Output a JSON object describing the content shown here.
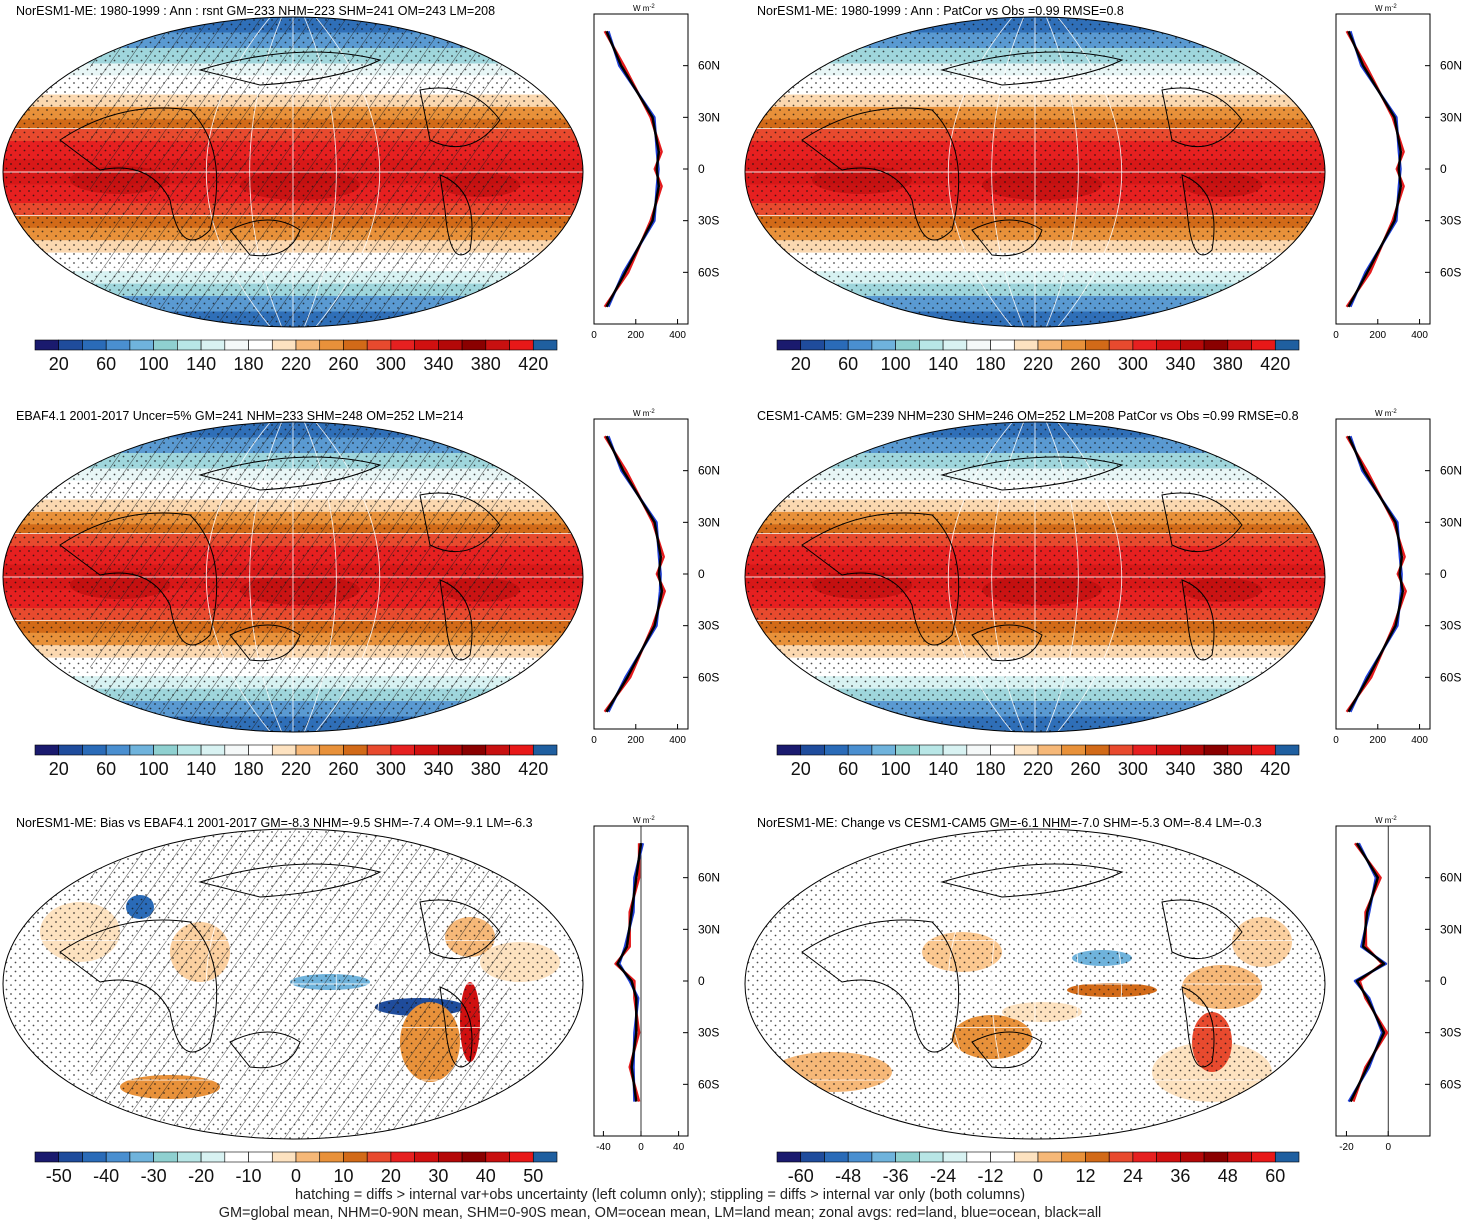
{
  "panels": [
    {
      "id": "p1",
      "title": "NorESM1-ME: 1980-1999 : Ann : rsnt GM=233 NHM=223 SHM=241 OM=243 LM=208",
      "kind": "clim",
      "hatch": true,
      "colorbar": {
        "labels": [
          "20",
          "60",
          "100",
          "140",
          "180",
          "220",
          "260",
          "300",
          "340",
          "380",
          "420"
        ]
      },
      "zonal": {
        "unit": "W m-2",
        "unit_base": "W m",
        "unit_sup": "-2",
        "xticks": [
          "0",
          "200",
          "400"
        ],
        "xlim": [
          0,
          450
        ],
        "lat_labels": [
          "60N",
          "30N",
          "0",
          "30S",
          "60S"
        ]
      }
    },
    {
      "id": "p2",
      "title": "NorESM1-ME: 1980-1999 : Ann : PatCor vs Obs =0.99 RMSE=0.8",
      "kind": "clim",
      "hatch": false,
      "colorbar": {
        "labels": [
          "20",
          "60",
          "100",
          "140",
          "180",
          "220",
          "260",
          "300",
          "340",
          "380",
          "420"
        ]
      },
      "zonal": {
        "unit": "W m-2",
        "unit_base": "W m",
        "unit_sup": "-2",
        "xticks": [
          "0",
          "200",
          "400"
        ],
        "xlim": [
          0,
          450
        ],
        "lat_labels": [
          "60N",
          "30N",
          "0",
          "30S",
          "60S"
        ]
      }
    },
    {
      "id": "p3",
      "title": "EBAF4.1 2001-2017 Uncer=5% GM=241 NHM=233 SHM=248 OM=252 LM=214",
      "kind": "clim",
      "hatch": true,
      "colorbar": {
        "labels": [
          "20",
          "60",
          "100",
          "140",
          "180",
          "220",
          "260",
          "300",
          "340",
          "380",
          "420"
        ]
      },
      "zonal": {
        "unit": "W m-2",
        "unit_base": "W m",
        "unit_sup": "-2",
        "xticks": [
          "0",
          "200",
          "400"
        ],
        "xlim": [
          0,
          450
        ],
        "lat_labels": [
          "60N",
          "30N",
          "0",
          "30S",
          "60S"
        ]
      }
    },
    {
      "id": "p4",
      "title": "CESM1-CAM5: GM=239 NHM=230 SHM=246 OM=252 LM=208 PatCor vs Obs =0.99 RMSE=0.8",
      "kind": "clim",
      "hatch": false,
      "colorbar": {
        "labels": [
          "20",
          "60",
          "100",
          "140",
          "180",
          "220",
          "260",
          "300",
          "340",
          "380",
          "420"
        ]
      },
      "zonal": {
        "unit": "W m-2",
        "unit_base": "W m",
        "unit_sup": "-2",
        "xticks": [
          "0",
          "200",
          "400"
        ],
        "xlim": [
          0,
          450
        ],
        "lat_labels": [
          "60N",
          "30N",
          "0",
          "30S",
          "60S"
        ]
      }
    },
    {
      "id": "p5",
      "title": "NorESM1-ME: Bias vs EBAF4.1 2001-2017 GM=-8.3 NHM=-9.5 SHM=-7.4 OM=-9.1 LM=-6.3",
      "kind": "diff",
      "hatch": true,
      "colorbar": {
        "labels": [
          "-50",
          "-40",
          "-30",
          "-20",
          "-10",
          "0",
          "10",
          "20",
          "30",
          "40",
          "50"
        ]
      },
      "zonal": {
        "unit": "W m-2",
        "unit_base": "W m",
        "unit_sup": "-2",
        "xticks": [
          "-40",
          "0",
          "40"
        ],
        "xlim": [
          -50,
          50
        ],
        "lat_labels": [
          "60N",
          "30N",
          "0",
          "30S",
          "60S"
        ]
      }
    },
    {
      "id": "p6",
      "title": "NorESM1-ME: Change vs CESM1-CAM5 GM=-6.1 NHM=-7.0 SHM=-5.3 OM=-8.4 LM=-0.3",
      "kind": "diff2",
      "hatch": false,
      "colorbar": {
        "labels": [
          "-60",
          "-48",
          "-36",
          "-24",
          "-12",
          "0",
          "12",
          "24",
          "36",
          "48",
          "60"
        ]
      },
      "zonal": {
        "unit": "W m-2",
        "unit_base": "W m",
        "unit_sup": "-2",
        "xticks": [
          "-20",
          "0"
        ],
        "xlim": [
          -25,
          20
        ],
        "lat_labels": [
          "60N",
          "30N",
          "0",
          "30S",
          "60S"
        ]
      }
    }
  ],
  "colors": {
    "clim_scale": [
      "#1a1a6e",
      "#1f4c9c",
      "#2a6bb8",
      "#4a8fd0",
      "#6fb3dc",
      "#8fd0d0",
      "#b8e6e6",
      "#d8f2f2",
      "#f4f8f8",
      "#ffffff",
      "#fde2c0",
      "#f6b878",
      "#e8913a",
      "#d26a18",
      "#e84a2e",
      "#e62020",
      "#d01010",
      "#b40808",
      "#8a0000",
      "#c81010",
      "#e81818",
      "#1f5fa0"
    ],
    "diff_scale": [
      "#1a1a6e",
      "#1f4c9c",
      "#2a6bb8",
      "#4a8fd0",
      "#6fb3dc",
      "#8fd0d0",
      "#b8e6e6",
      "#d8f2f2",
      "#ffffff",
      "#ffffff",
      "#fde2c0",
      "#f6b878",
      "#e8913a",
      "#d26a18",
      "#e84a2e",
      "#e62020",
      "#d01010",
      "#b40808",
      "#8a0000",
      "#c81010",
      "#e81818",
      "#1f5fa0"
    ],
    "land": "#e41a1c",
    "ocean": "#1f3fd6",
    "all": "#000000"
  },
  "chart_data": {
    "type": "heatmap",
    "variable": "rsnt",
    "units": "W m-2",
    "panels": [
      {
        "name": "NorESM1-ME 1980-1999 Ann",
        "GM": 233,
        "NHM": 223,
        "SHM": 241,
        "OM": 243,
        "LM": 208,
        "zonal_all": {
          "lat": [
            80,
            60,
            30,
            10,
            0,
            -10,
            -30,
            -60,
            -80
          ],
          "value": [
            60,
            130,
            280,
            310,
            300,
            310,
            280,
            150,
            60
          ]
        }
      },
      {
        "name": "NorESM1-ME PatCor",
        "PatCor": 0.99,
        "RMSE": 0.8,
        "zonal_all": {
          "lat": [
            80,
            60,
            30,
            10,
            0,
            -10,
            -30,
            -60,
            -80
          ],
          "value": [
            60,
            130,
            280,
            310,
            300,
            310,
            280,
            150,
            60
          ]
        }
      },
      {
        "name": "EBAF4.1 2001-2017",
        "Uncer": "5%",
        "GM": 241,
        "NHM": 233,
        "SHM": 248,
        "OM": 252,
        "LM": 214,
        "zonal_all": {
          "lat": [
            80,
            60,
            30,
            10,
            0,
            -10,
            -30,
            -60,
            -80
          ],
          "value": [
            60,
            140,
            290,
            320,
            310,
            325,
            290,
            160,
            60
          ]
        }
      },
      {
        "name": "CESM1-CAM5",
        "GM": 239,
        "NHM": 230,
        "SHM": 246,
        "OM": 252,
        "LM": 208,
        "PatCor": 0.99,
        "RMSE": 0.8,
        "zonal_all": {
          "lat": [
            80,
            60,
            30,
            10,
            0,
            -10,
            -30,
            -60,
            -80
          ],
          "value": [
            60,
            135,
            285,
            315,
            305,
            320,
            285,
            155,
            60
          ]
        }
      },
      {
        "name": "Bias vs EBAF4.1",
        "GM": -8.3,
        "NHM": -9.5,
        "SHM": -7.4,
        "OM": -9.1,
        "LM": -6.3,
        "zonal_all": {
          "lat": [
            80,
            60,
            40,
            20,
            10,
            0,
            -10,
            -30,
            -50,
            -70
          ],
          "value": [
            0,
            -5,
            -10,
            -15,
            -25,
            -10,
            -5,
            -5,
            -10,
            -5
          ]
        }
      },
      {
        "name": "Change vs CESM1-CAM5",
        "GM": -6.1,
        "NHM": -7.0,
        "SHM": -5.3,
        "OM": -8.4,
        "LM": -0.3,
        "zonal_all": {
          "lat": [
            80,
            60,
            40,
            20,
            10,
            0,
            -10,
            -30,
            -50,
            -70
          ],
          "value": [
            -15,
            -5,
            -10,
            -12,
            -2,
            -15,
            -10,
            -2,
            -10,
            -18
          ]
        }
      }
    ]
  },
  "caption": {
    "line1": "hatching = diffs > internal var+obs uncertainty (left column only); stippling = diffs > internal var only (both columns)",
    "line2": "GM=global mean, NHM=0-90N mean, SHM=0-90S mean, OM=ocean mean, LM=land mean; zonal avgs: red=land, blue=ocean, black=all"
  }
}
